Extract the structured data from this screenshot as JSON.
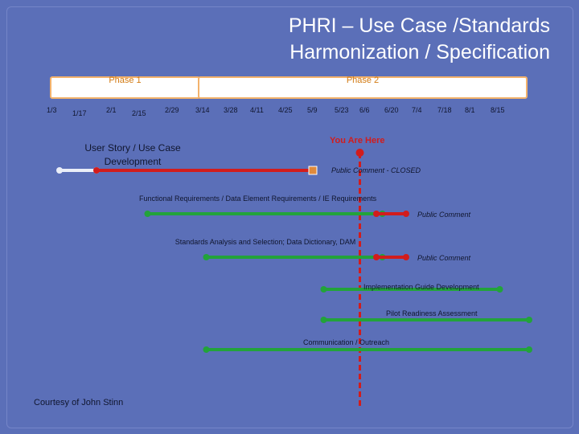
{
  "title": {
    "line1": "PHRI – Use Case /Standards",
    "line2": "Harmonization / Specification"
  },
  "phases": [
    {
      "name": "Phase 1"
    },
    {
      "name": "Phase 2"
    }
  ],
  "timeline_dates": [
    "1/3",
    "1/17",
    "2/1",
    "2/15",
    "2/29",
    "3/14",
    "3/28",
    "4/11",
    "4/25",
    "5/9",
    "5/23",
    "6/6",
    "6/20",
    "7/4",
    "7/18",
    "8/1",
    "8/15"
  ],
  "current_marker": {
    "label": "You Are Here",
    "date": "5/9",
    "color": "#d21c1c"
  },
  "tasks": [
    {
      "label": "User Story / Use Case Development",
      "start": "1/3",
      "end": "2/1",
      "color": "#eaeef8"
    },
    {
      "label": "Public Comment - CLOSED",
      "start": "2/1",
      "end": "5/9",
      "color": "#d21c1c"
    },
    {
      "label": "Functional Requirements / Data Element Requirements / IE Requirements",
      "start": "2/15",
      "end": "6/6",
      "color": "#22a33a"
    },
    {
      "label": "Public Comment",
      "start": "6/6",
      "end": "6/20",
      "color": "#d21c1c"
    },
    {
      "label": "Standards Analysis  and Selection; Data Dictionary, DAM",
      "start": "3/14",
      "end": "6/6",
      "color": "#22a33a"
    },
    {
      "label": "Public Comment",
      "start": "6/6",
      "end": "6/20",
      "color": "#d21c1c"
    },
    {
      "label": "Implementation Guide Development",
      "start": "5/9",
      "end": "8/1",
      "color": "#22a33a"
    },
    {
      "label": "Pilot Readiness Assessment",
      "start": "5/9",
      "end": "8/15",
      "color": "#22a33a"
    },
    {
      "label": "Communication / Outreach",
      "start": "3/14",
      "end": "8/15",
      "color": "#22a33a"
    }
  ],
  "credit": "Courtesy of John Stinn",
  "colors": {
    "background": "#5b6fb8",
    "phase_accent": "#d27a12",
    "progress_green": "#22a33a",
    "comment_red": "#d21c1c"
  }
}
